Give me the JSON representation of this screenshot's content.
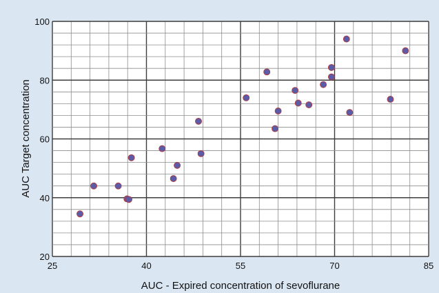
{
  "chart_data": {
    "type": "scatter",
    "title": "",
    "xlabel": "AUC - Expired concentration of sevoflurane",
    "ylabel": "AUC Target concentration",
    "xlim": [
      25,
      85
    ],
    "ylim": [
      20,
      100
    ],
    "x_ticks": [
      25,
      40,
      55,
      70,
      85
    ],
    "y_ticks": [
      20,
      40,
      60,
      80,
      100
    ],
    "x_tick_labels": [
      "25",
      "40",
      "55",
      "70",
      "85"
    ],
    "y_tick_labels": [
      "20",
      "40",
      "60",
      "80",
      "100"
    ],
    "grid": true,
    "colors": {
      "background": "#dbe6f3",
      "plot_area": "#ffffff",
      "minor_grid": "#8c8c8c",
      "major_grid": "#3c3c3c",
      "marker_fill": "#5b5ba8",
      "marker_edge": "#b23a3a"
    },
    "series": [
      {
        "points": [
          {
            "x": 29.4,
            "y": 34.5
          },
          {
            "x": 31.6,
            "y": 44.0
          },
          {
            "x": 35.5,
            "y": 44.0
          },
          {
            "x": 36.9,
            "y": 39.6
          },
          {
            "x": 37.2,
            "y": 39.4
          },
          {
            "x": 37.6,
            "y": 53.6
          },
          {
            "x": 42.5,
            "y": 56.7
          },
          {
            "x": 44.3,
            "y": 46.5
          },
          {
            "x": 44.9,
            "y": 51.0
          },
          {
            "x": 48.3,
            "y": 66.0
          },
          {
            "x": 48.7,
            "y": 55.0
          },
          {
            "x": 55.9,
            "y": 74.0
          },
          {
            "x": 59.2,
            "y": 82.8
          },
          {
            "x": 60.5,
            "y": 63.5
          },
          {
            "x": 61.0,
            "y": 69.5
          },
          {
            "x": 63.7,
            "y": 76.5
          },
          {
            "x": 64.2,
            "y": 72.2
          },
          {
            "x": 65.9,
            "y": 71.6
          },
          {
            "x": 68.2,
            "y": 78.5
          },
          {
            "x": 69.5,
            "y": 81.1
          },
          {
            "x": 69.5,
            "y": 84.3
          },
          {
            "x": 71.9,
            "y": 94.0
          },
          {
            "x": 72.4,
            "y": 69.0
          },
          {
            "x": 78.9,
            "y": 73.5
          },
          {
            "x": 81.3,
            "y": 90.0
          }
        ]
      }
    ]
  }
}
